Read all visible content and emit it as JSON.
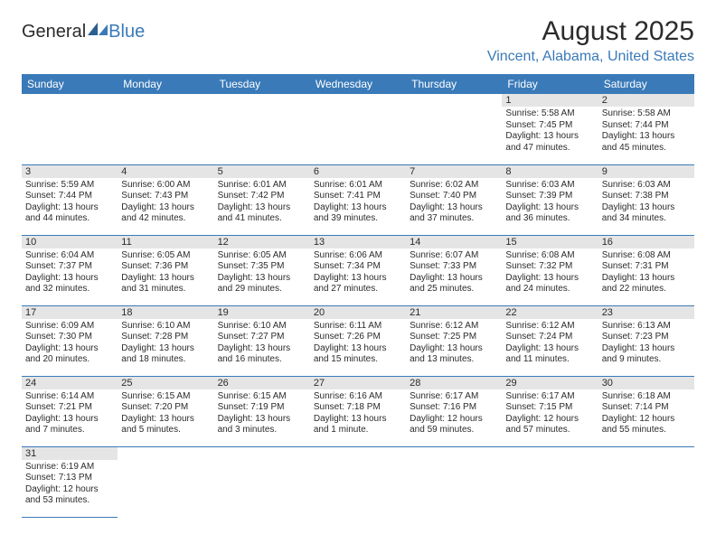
{
  "brand": {
    "part1": "General",
    "part2": "Blue"
  },
  "title": "August 2025",
  "location": "Vincent, Alabama, United States",
  "colors": {
    "accent": "#3a7ab8",
    "daynum_bg": "#e5e5e5",
    "text": "#2b2b2b",
    "bg": "#ffffff"
  },
  "weekdays": [
    "Sunday",
    "Monday",
    "Tuesday",
    "Wednesday",
    "Thursday",
    "Friday",
    "Saturday"
  ],
  "first_weekday_index": 5,
  "days": [
    {
      "n": 1,
      "rise": "5:58 AM",
      "set": "7:45 PM",
      "dl": "13 hours and 47 minutes."
    },
    {
      "n": 2,
      "rise": "5:58 AM",
      "set": "7:44 PM",
      "dl": "13 hours and 45 minutes."
    },
    {
      "n": 3,
      "rise": "5:59 AM",
      "set": "7:44 PM",
      "dl": "13 hours and 44 minutes."
    },
    {
      "n": 4,
      "rise": "6:00 AM",
      "set": "7:43 PM",
      "dl": "13 hours and 42 minutes."
    },
    {
      "n": 5,
      "rise": "6:01 AM",
      "set": "7:42 PM",
      "dl": "13 hours and 41 minutes."
    },
    {
      "n": 6,
      "rise": "6:01 AM",
      "set": "7:41 PM",
      "dl": "13 hours and 39 minutes."
    },
    {
      "n": 7,
      "rise": "6:02 AM",
      "set": "7:40 PM",
      "dl": "13 hours and 37 minutes."
    },
    {
      "n": 8,
      "rise": "6:03 AM",
      "set": "7:39 PM",
      "dl": "13 hours and 36 minutes."
    },
    {
      "n": 9,
      "rise": "6:03 AM",
      "set": "7:38 PM",
      "dl": "13 hours and 34 minutes."
    },
    {
      "n": 10,
      "rise": "6:04 AM",
      "set": "7:37 PM",
      "dl": "13 hours and 32 minutes."
    },
    {
      "n": 11,
      "rise": "6:05 AM",
      "set": "7:36 PM",
      "dl": "13 hours and 31 minutes."
    },
    {
      "n": 12,
      "rise": "6:05 AM",
      "set": "7:35 PM",
      "dl": "13 hours and 29 minutes."
    },
    {
      "n": 13,
      "rise": "6:06 AM",
      "set": "7:34 PM",
      "dl": "13 hours and 27 minutes."
    },
    {
      "n": 14,
      "rise": "6:07 AM",
      "set": "7:33 PM",
      "dl": "13 hours and 25 minutes."
    },
    {
      "n": 15,
      "rise": "6:08 AM",
      "set": "7:32 PM",
      "dl": "13 hours and 24 minutes."
    },
    {
      "n": 16,
      "rise": "6:08 AM",
      "set": "7:31 PM",
      "dl": "13 hours and 22 minutes."
    },
    {
      "n": 17,
      "rise": "6:09 AM",
      "set": "7:30 PM",
      "dl": "13 hours and 20 minutes."
    },
    {
      "n": 18,
      "rise": "6:10 AM",
      "set": "7:28 PM",
      "dl": "13 hours and 18 minutes."
    },
    {
      "n": 19,
      "rise": "6:10 AM",
      "set": "7:27 PM",
      "dl": "13 hours and 16 minutes."
    },
    {
      "n": 20,
      "rise": "6:11 AM",
      "set": "7:26 PM",
      "dl": "13 hours and 15 minutes."
    },
    {
      "n": 21,
      "rise": "6:12 AM",
      "set": "7:25 PM",
      "dl": "13 hours and 13 minutes."
    },
    {
      "n": 22,
      "rise": "6:12 AM",
      "set": "7:24 PM",
      "dl": "13 hours and 11 minutes."
    },
    {
      "n": 23,
      "rise": "6:13 AM",
      "set": "7:23 PM",
      "dl": "13 hours and 9 minutes."
    },
    {
      "n": 24,
      "rise": "6:14 AM",
      "set": "7:21 PM",
      "dl": "13 hours and 7 minutes."
    },
    {
      "n": 25,
      "rise": "6:15 AM",
      "set": "7:20 PM",
      "dl": "13 hours and 5 minutes."
    },
    {
      "n": 26,
      "rise": "6:15 AM",
      "set": "7:19 PM",
      "dl": "13 hours and 3 minutes."
    },
    {
      "n": 27,
      "rise": "6:16 AM",
      "set": "7:18 PM",
      "dl": "13 hours and 1 minute."
    },
    {
      "n": 28,
      "rise": "6:17 AM",
      "set": "7:16 PM",
      "dl": "12 hours and 59 minutes."
    },
    {
      "n": 29,
      "rise": "6:17 AM",
      "set": "7:15 PM",
      "dl": "12 hours and 57 minutes."
    },
    {
      "n": 30,
      "rise": "6:18 AM",
      "set": "7:14 PM",
      "dl": "12 hours and 55 minutes."
    },
    {
      "n": 31,
      "rise": "6:19 AM",
      "set": "7:13 PM",
      "dl": "12 hours and 53 minutes."
    }
  ],
  "labels": {
    "sunrise": "Sunrise:",
    "sunset": "Sunset:",
    "daylight": "Daylight:"
  }
}
